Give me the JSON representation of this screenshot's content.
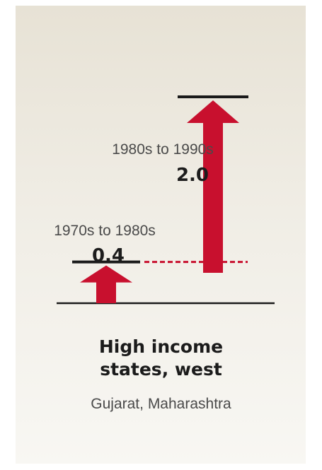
{
  "chart_data": {
    "type": "bar",
    "title_lines": [
      "High income",
      "states, west"
    ],
    "subtitle": "Gujarat, Maharashtra",
    "categories": [
      "1970s to 1980s",
      "1980s to 1990s"
    ],
    "values": [
      0.4,
      2.0
    ],
    "value_labels": [
      "0.4",
      "2.0"
    ],
    "ylim": [
      0,
      2.0
    ],
    "grid": false,
    "legend": "none"
  },
  "colors": {
    "arrow": "#c8102e",
    "baseline": "#1a1a1a",
    "top_marker": "#1a1a1a",
    "panel": "#ece8de"
  }
}
